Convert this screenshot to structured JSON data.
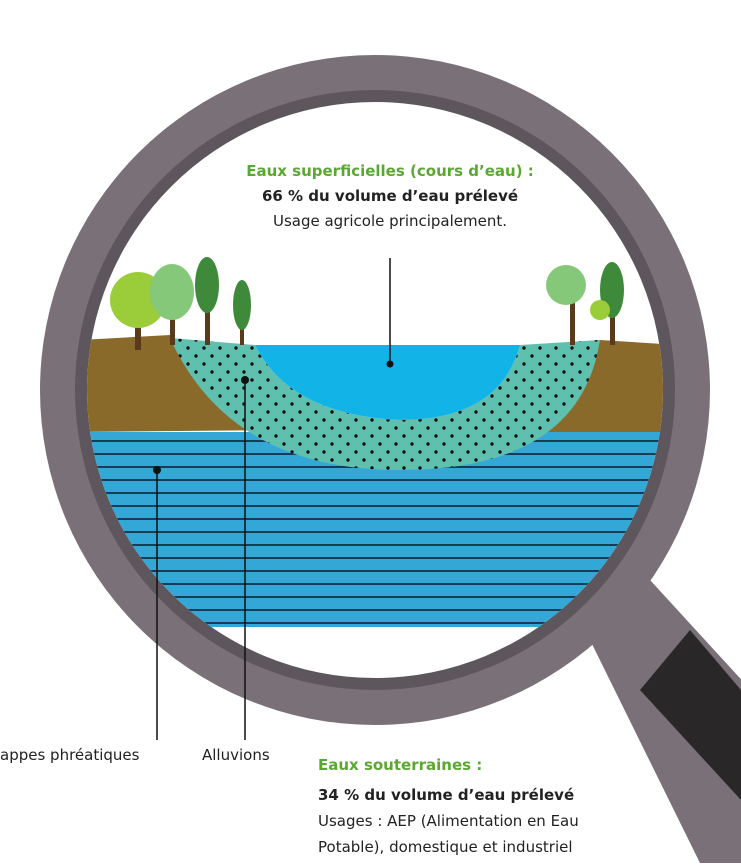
{
  "surface": {
    "title": "Eaux superficielles (cours d’eau) :",
    "share": "66 % du volume d’eau prélevé",
    "usage": "Usage agricole principalement."
  },
  "labels": {
    "groundwater_table": "appes phréatiques",
    "alluvium": "Alluvions"
  },
  "underground": {
    "title": "Eaux souterraines :",
    "share": "34 % du volume d’eau prélevé",
    "usage_line1": "Usages : AEP (Alimentation en Eau",
    "usage_line2": "Potable), domestique et industriel"
  }
}
